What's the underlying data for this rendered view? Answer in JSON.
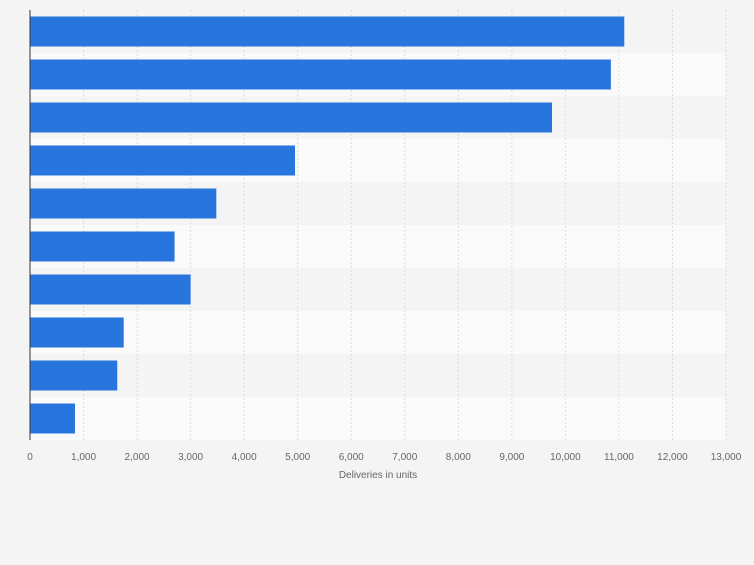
{
  "chart_data": {
    "type": "bar",
    "orientation": "horizontal",
    "categories": [
      "",
      "",
      "",
      "",
      "",
      "",
      "",
      "",
      "",
      ""
    ],
    "values": [
      11100,
      10850,
      9750,
      4950,
      3480,
      2700,
      3000,
      1750,
      1630,
      840
    ],
    "xlabel": "Deliveries in units",
    "ylabel": "",
    "xlim": [
      0,
      13000
    ],
    "xticks": [
      0,
      1000,
      2000,
      3000,
      4000,
      5000,
      6000,
      7000,
      8000,
      9000,
      10000,
      11000,
      12000,
      13000
    ],
    "xtick_labels": [
      "0",
      "1,000",
      "2,000",
      "3,000",
      "4,000",
      "5,000",
      "6,000",
      "7,000",
      "8,000",
      "9,000",
      "10,000",
      "11,000",
      "12,000",
      "13,000"
    ],
    "grid": true,
    "legend": "none",
    "colors": {
      "bar": "#2876dd",
      "band_dark": "#f4f4f4",
      "band_light": "#fafafa",
      "grid": "#dcdcdc",
      "axis": "#333333",
      "text": "#666666"
    }
  }
}
